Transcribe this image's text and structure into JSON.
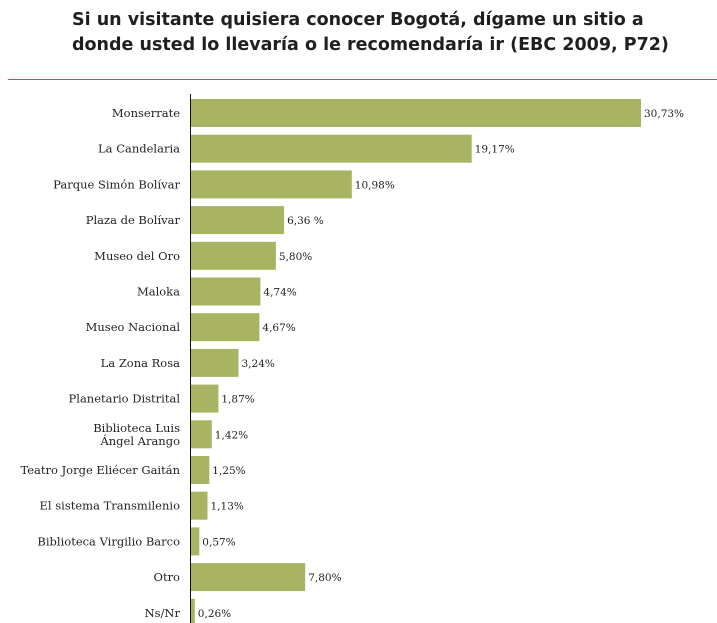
{
  "title": "Si un visitante quisiera conocer Bogotá, dígame un sitio a donde usted lo llevaría o le recomendaría ir (EBC 2009, P72)",
  "colors": {
    "bar": "#a9b462",
    "rule": "#c0504d",
    "axis": "#111111",
    "text": "#222222"
  },
  "chart_data": {
    "type": "bar",
    "orientation": "horizontal",
    "title": "Si un visitante quisiera conocer Bogotá, dígame un sitio a donde usted lo llevaría o le recomendaría ir (EBC 2009, P72)",
    "categories": [
      "Monserrate",
      "La Candelaria",
      "Parque Simón Bolívar",
      "Plaza de Bolívar",
      "Museo del Oro",
      "Maloka",
      "Museo Nacional",
      "La Zona Rosa",
      "Planetario Distrital",
      "Biblioteca Luis Ángel Arango",
      "Teatro Jorge Eliécer Gaitán",
      "El sistema Transmilenio",
      "Biblioteca Virgilio Barco",
      "Otro",
      "Ns/Nr"
    ],
    "category_lines": [
      [
        "Monserrate"
      ],
      [
        "La Candelaria"
      ],
      [
        "Parque Simón Bolívar"
      ],
      [
        "Plaza de Bolívar"
      ],
      [
        "Museo del Oro"
      ],
      [
        "Maloka"
      ],
      [
        "Museo Nacional"
      ],
      [
        "La Zona Rosa"
      ],
      [
        "Planetario Distrital"
      ],
      [
        "Biblioteca Luis",
        "Ángel Arango"
      ],
      [
        "Teatro Jorge Eliécer Gaitán"
      ],
      [
        "El sistema Transmilenio"
      ],
      [
        "Biblioteca Virgilio Barco"
      ],
      [
        "Otro"
      ],
      [
        "Ns/Nr"
      ]
    ],
    "values": [
      30.73,
      19.17,
      10.98,
      6.36,
      5.8,
      4.74,
      4.67,
      3.24,
      1.87,
      1.42,
      1.25,
      1.13,
      0.57,
      7.8,
      0.26
    ],
    "value_labels": [
      "30,73%",
      "19,17%",
      "10,98%",
      "6,36 %",
      "5,80%",
      "4,74%",
      "4,67%",
      "3,24%",
      "1,87%",
      "1,42%",
      "1,25%",
      "1,13%",
      "0,57%",
      "7,80%",
      "0,26%"
    ],
    "unit": "%",
    "xlim": [
      0,
      31
    ],
    "grid": false,
    "legend": "none"
  }
}
